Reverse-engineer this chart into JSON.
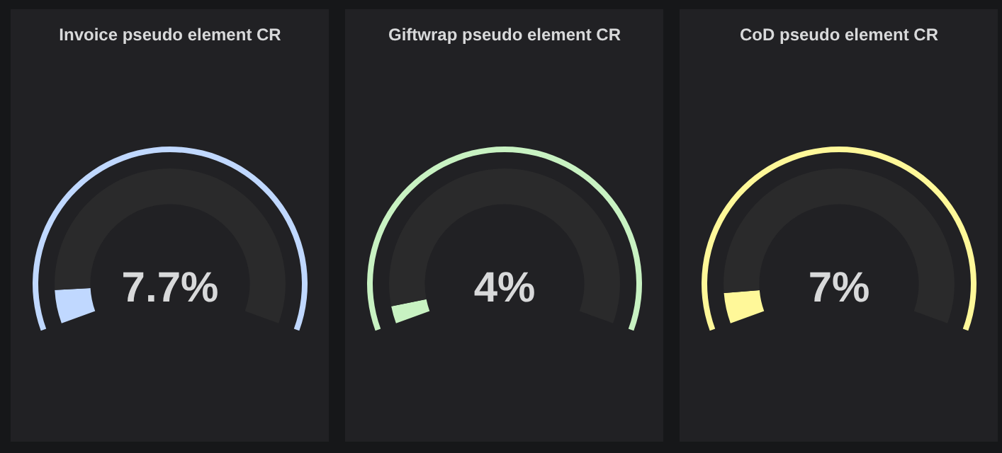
{
  "chart_data": [
    {
      "type": "donut",
      "title": "Invoice pseudo element CR",
      "categories": [
        null,
        null
      ],
      "values": [
        7.7,
        92.3
      ],
      "colors": [
        "#c0d8ff",
        "#2a2a2b"
      ],
      "annotations": [
        "7.7%"
      ]
    },
    {
      "type": "donut",
      "title": "Giftwrap pseudo element CR",
      "categories": [
        null,
        null
      ],
      "values": [
        4,
        96
      ],
      "colors": [
        "#c8f2c2",
        "#2a2a2b"
      ],
      "annotations": [
        "4%"
      ]
    },
    {
      "type": "donut",
      "title": "CoD pseudo element CR",
      "categories": [
        null,
        null
      ],
      "values": [
        7,
        93
      ],
      "colors": [
        "#fff899",
        "#2a2a2b"
      ],
      "annotations": [
        "7%"
      ]
    }
  ]
}
